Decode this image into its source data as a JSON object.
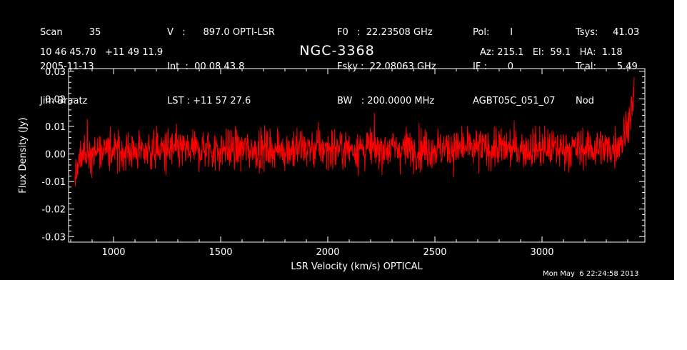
{
  "header": {
    "col1": [
      "Scan         35",
      "2005-11-13",
      "Jim Braatz"
    ],
    "col2": [
      "V   :      897.0 OPTI-LSR",
      "Int  :  00 08 43.8",
      "LST : +11 57 27.6"
    ],
    "col3": [
      "F0   :  22.23508 GHz",
      "Fsky :  22.08063 GHz",
      "BW   : 200.0000 MHz"
    ],
    "col4": [
      "Pol:       I",
      "IF :       0",
      "AGBT05C_051_07"
    ],
    "col5": [
      "Tsys:     41.03",
      "Tcal:       5.49",
      "Nod"
    ],
    "coords": "10 46 45.70   +11 49 11.9",
    "azelha": "Az: 215.1   El:  59.1   HA:  1.18"
  },
  "timestamp": "Mon May  6 22:24:58 2013",
  "chart_data": {
    "type": "line",
    "title": "NGC-3368",
    "xlabel": "LSR Velocity (km/s) OPTICAL",
    "ylabel": "Flux Density (Jy)",
    "xlim": [
      790,
      3480
    ],
    "ylim": [
      -0.032,
      0.031
    ],
    "xticks": [
      1000,
      1500,
      2000,
      2500,
      3000
    ],
    "yticks": [
      -0.03,
      -0.02,
      -0.01,
      0.0,
      0.01,
      0.02,
      0.03
    ],
    "ytick_labels": [
      "-0.03",
      "-0.02",
      "-0.01",
      "0.00",
      "0.01",
      "0.02",
      "0.03"
    ],
    "grid": false,
    "series": [
      {
        "color": "#ff0000",
        "x_range": [
          820,
          3430
        ],
        "n_points": 1600,
        "noise_rms": 0.0065,
        "baseline": [
          [
            820,
            -0.008
          ],
          [
            860,
            0.001
          ],
          [
            2000,
            0.002
          ],
          [
            3330,
            0.002
          ],
          [
            3380,
            0.006
          ],
          [
            3420,
            0.017
          ],
          [
            3430,
            0.02
          ]
        ]
      }
    ]
  }
}
